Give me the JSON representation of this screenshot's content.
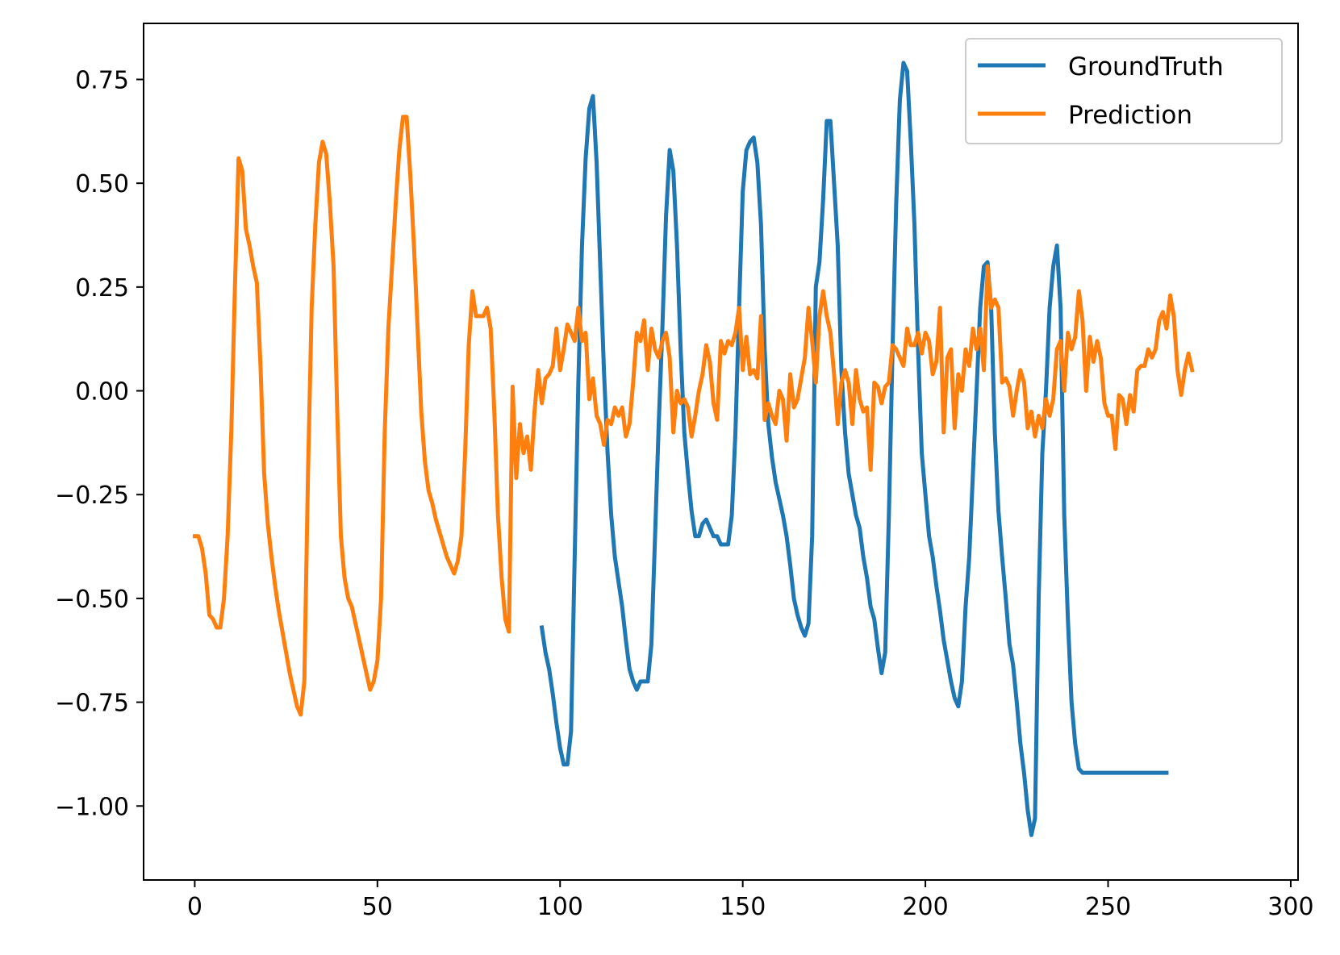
{
  "chart_data": {
    "type": "line",
    "title": "",
    "xlabel": "",
    "ylabel": "",
    "xlim": [
      -14,
      302
    ],
    "ylim": [
      -1.1782,
      0.885
    ],
    "xticks": [
      0,
      50,
      100,
      150,
      200,
      250,
      300
    ],
    "yticks": [
      -1.0,
      -0.75,
      -0.5,
      -0.25,
      0.0,
      0.25,
      0.5,
      0.75
    ],
    "xtick_labels": [
      "0",
      "50",
      "100",
      "150",
      "200",
      "250",
      "300"
    ],
    "ytick_labels": [
      "−1.00",
      "−0.75",
      "−0.50",
      "−0.25",
      "0.00",
      "0.25",
      "0.50",
      "0.75"
    ],
    "grid": false,
    "legend_position": "top-right",
    "colors": {
      "GroundTruth": "#1f77b4",
      "Prediction": "#ff7f0e"
    },
    "series": [
      {
        "name": "GroundTruth",
        "x_start": 95,
        "values": [
          -0.57,
          -0.63,
          -0.67,
          -0.73,
          -0.8,
          -0.86,
          -0.9,
          -0.9,
          -0.82,
          -0.4,
          0.02,
          0.35,
          0.56,
          0.68,
          0.71,
          0.55,
          0.3,
          0.05,
          -0.15,
          -0.3,
          -0.4,
          -0.46,
          -0.52,
          -0.6,
          -0.67,
          -0.7,
          -0.72,
          -0.7,
          -0.7,
          -0.7,
          -0.61,
          -0.35,
          -0.08,
          0.15,
          0.42,
          0.58,
          0.53,
          0.35,
          0.1,
          -0.1,
          -0.2,
          -0.29,
          -0.35,
          -0.35,
          -0.32,
          -0.31,
          -0.33,
          -0.35,
          -0.35,
          -0.37,
          -0.37,
          -0.37,
          -0.3,
          -0.1,
          0.2,
          0.48,
          0.58,
          0.6,
          0.61,
          0.55,
          0.4,
          0.1,
          -0.08,
          -0.16,
          -0.22,
          -0.26,
          -0.3,
          -0.35,
          -0.42,
          -0.5,
          -0.54,
          -0.57,
          -0.59,
          -0.56,
          -0.35,
          0.25,
          0.31,
          0.46,
          0.65,
          0.65,
          0.5,
          0.35,
          0.05,
          -0.1,
          -0.2,
          -0.25,
          -0.3,
          -0.33,
          -0.4,
          -0.45,
          -0.52,
          -0.55,
          -0.62,
          -0.68,
          -0.63,
          -0.3,
          0.1,
          0.45,
          0.7,
          0.79,
          0.77,
          0.6,
          0.4,
          0.1,
          -0.15,
          -0.25,
          -0.35,
          -0.4,
          -0.47,
          -0.53,
          -0.6,
          -0.65,
          -0.7,
          -0.74,
          -0.76,
          -0.7,
          -0.52,
          -0.4,
          -0.2,
          0.0,
          0.2,
          0.3,
          0.31,
          0.2,
          -0.1,
          -0.29,
          -0.4,
          -0.5,
          -0.61,
          -0.66,
          -0.75,
          -0.85,
          -0.92,
          -1.01,
          -1.07,
          -1.03,
          -0.5,
          -0.15,
          0.0,
          0.2,
          0.3,
          0.35,
          0.2,
          -0.3,
          -0.55,
          -0.75,
          -0.85,
          -0.91,
          -0.92,
          -0.92,
          -0.92,
          -0.92,
          -0.92,
          -0.92,
          -0.92,
          -0.92,
          -0.92,
          -0.92,
          -0.92,
          -0.92,
          -0.92,
          -0.92,
          -0.92,
          -0.92,
          -0.92,
          -0.92,
          -0.92,
          -0.92,
          -0.92,
          -0.92,
          -0.92,
          -0.92
        ]
      },
      {
        "name": "Prediction",
        "x_start": 0,
        "values": [
          -0.35,
          -0.35,
          -0.38,
          -0.44,
          -0.54,
          -0.55,
          -0.57,
          -0.57,
          -0.5,
          -0.35,
          -0.1,
          0.25,
          0.56,
          0.53,
          0.39,
          0.35,
          0.3,
          0.26,
          0.06,
          -0.2,
          -0.32,
          -0.4,
          -0.47,
          -0.53,
          -0.58,
          -0.63,
          -0.68,
          -0.72,
          -0.76,
          -0.78,
          -0.7,
          -0.2,
          0.2,
          0.4,
          0.55,
          0.6,
          0.57,
          0.45,
          0.3,
          -0.05,
          -0.35,
          -0.45,
          -0.5,
          -0.52,
          -0.56,
          -0.6,
          -0.64,
          -0.68,
          -0.72,
          -0.7,
          -0.65,
          -0.5,
          -0.1,
          0.15,
          0.3,
          0.45,
          0.58,
          0.66,
          0.66,
          0.52,
          0.35,
          0.15,
          -0.05,
          -0.17,
          -0.24,
          -0.27,
          -0.31,
          -0.34,
          -0.37,
          -0.4,
          -0.42,
          -0.44,
          -0.41,
          -0.35,
          -0.15,
          0.11,
          0.24,
          0.18,
          0.18,
          0.18,
          0.2,
          0.15,
          -0.05,
          -0.3,
          -0.45,
          -0.55,
          -0.58,
          0.01,
          -0.21,
          -0.08,
          -0.15,
          -0.11,
          -0.19,
          -0.05,
          0.05,
          -0.03,
          0.03,
          0.04,
          0.06,
          0.15,
          0.05,
          0.1,
          0.16,
          0.14,
          0.12,
          0.2,
          0.12,
          0.14,
          -0.02,
          0.03,
          -0.06,
          -0.08,
          -0.13,
          -0.07,
          -0.08,
          -0.04,
          -0.06,
          -0.04,
          -0.11,
          -0.08,
          0.02,
          0.14,
          0.12,
          0.17,
          0.05,
          0.15,
          0.1,
          0.08,
          0.12,
          0.14,
          0.08,
          -0.1,
          0.0,
          -0.03,
          -0.02,
          -0.04,
          -0.11,
          -0.06,
          0.0,
          0.04,
          0.11,
          0.07,
          -0.03,
          -0.07,
          0.12,
          0.09,
          0.12,
          0.11,
          0.14,
          0.2,
          0.05,
          0.13,
          0.04,
          0.05,
          0.03,
          0.18,
          -0.07,
          -0.03,
          -0.06,
          -0.08,
          0.0,
          -0.02,
          -0.12,
          0.04,
          -0.04,
          -0.02,
          0.03,
          0.08,
          0.2,
          0.12,
          0.02,
          0.18,
          0.24,
          0.18,
          0.14,
          0.04,
          -0.08,
          0.02,
          0.05,
          0.02,
          -0.08,
          0.05,
          -0.02,
          -0.05,
          -0.04,
          -0.19,
          0.02,
          0.01,
          -0.03,
          0.01,
          0.02,
          0.11,
          0.1,
          0.08,
          0.06,
          0.15,
          0.11,
          0.11,
          0.14,
          0.09,
          0.14,
          0.12,
          0.04,
          0.07,
          0.2,
          -0.1,
          0.08,
          0.1,
          -0.09,
          0.04,
          0.0,
          0.1,
          0.06,
          0.15,
          0.1,
          0.15,
          0.05,
          0.3,
          0.2,
          0.22,
          0.2,
          0.02,
          0.03,
          0.01,
          -0.06,
          0.0,
          0.05,
          0.02,
          -0.09,
          -0.05,
          -0.11,
          -0.06,
          -0.09,
          -0.02,
          -0.06,
          -0.02,
          0.1,
          0.12,
          0.0,
          0.14,
          0.1,
          0.13,
          0.24,
          0.17,
          0.0,
          0.13,
          0.07,
          0.12,
          0.08,
          -0.03,
          -0.06,
          -0.06,
          -0.14,
          -0.01,
          -0.02,
          -0.08,
          -0.01,
          -0.05,
          0.05,
          0.06,
          0.06,
          0.1,
          0.08,
          0.1,
          0.17,
          0.19,
          0.15,
          0.23,
          0.18,
          0.05,
          -0.01,
          0.05,
          0.09,
          0.05
        ]
      }
    ]
  }
}
